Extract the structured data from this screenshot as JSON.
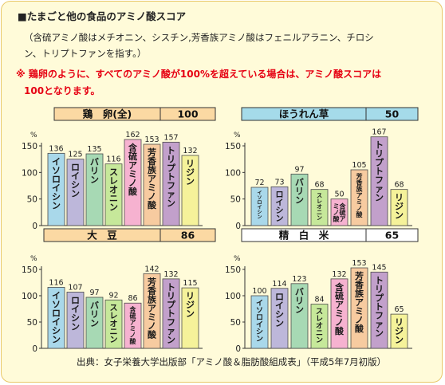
{
  "header": {
    "title": "■たまごと他の食品のアミノ酸スコア",
    "note_line1": "（含硫アミノ酸はメチオニン、シスチン,芳香族アミノ酸はフェニルアラニン、チロシ",
    "note_line2": "ン、トリプトファンを指す。）",
    "warning_line1": "※ 鶏卵のように、すべてのアミノ酸が100%を超えている場合は、アミノ酸スコアは",
    "warning_line2": "100となります。"
  },
  "source": "出典：女子栄養大学出版部「アミノ酸＆脂肪酸組成表」（平成5年7月初版）",
  "chart_data": [
    {
      "type": "bar",
      "title": "鶏　卵(全)",
      "score": "100",
      "ylabel": "%",
      "ylim": [
        0,
        150
      ],
      "yticks": [
        "0",
        "50",
        "100",
        "150"
      ],
      "categories": [
        "イソロイシン",
        "ロイシン",
        "バリン",
        "スレオニン",
        "含硫アミノ酸",
        "芳香族アミノ酸",
        "トリプトファン",
        "リジン"
      ],
      "values": [
        136,
        125,
        135,
        116,
        162,
        153,
        157,
        132
      ],
      "colors": [
        "#a9d8ea",
        "#bdb7da",
        "#a7d9b4",
        "#c6e89a",
        "#f6b2d0",
        "#f7cba0",
        "#c2a0cb",
        "#f5f29a"
      ]
    },
    {
      "type": "bar",
      "title": "ほうれん草",
      "score": "50",
      "ylabel": "%",
      "ylim": [
        0,
        150
      ],
      "yticks": [
        "0",
        "50",
        "100",
        "150"
      ],
      "categories": [
        "イソロイシン",
        "ロイシン",
        "バリン",
        "スレオニン",
        "含硫アミノ酸",
        "芳香族アミノ酸",
        "トリプトファン",
        "リジン"
      ],
      "values": [
        72,
        73,
        97,
        68,
        50,
        105,
        167,
        68
      ],
      "colors": [
        "#a9d8ea",
        "#bdb7da",
        "#a7d9b4",
        "#c6e89a",
        "#f6b2d0",
        "#f7cba0",
        "#c2a0cb",
        "#f5f29a"
      ]
    },
    {
      "type": "bar",
      "title": "大　豆",
      "score": "86",
      "ylabel": "%",
      "ylim": [
        0,
        150
      ],
      "yticks": [
        "0",
        "50",
        "100",
        "150"
      ],
      "categories": [
        "イソロイシン",
        "ロイシン",
        "バリン",
        "スレオニン",
        "含硫アミノ酸",
        "芳香族アミノ酸",
        "トリプトファン",
        "リジン"
      ],
      "values": [
        116,
        107,
        97,
        92,
        86,
        142,
        132,
        115
      ],
      "colors": [
        "#a9d8ea",
        "#bdb7da",
        "#a7d9b4",
        "#c6e89a",
        "#f6b2d0",
        "#f7cba0",
        "#c2a0cb",
        "#f5f29a"
      ]
    },
    {
      "type": "bar",
      "title": "精　白　米",
      "score": "65",
      "ylabel": "%",
      "ylim": [
        0,
        150
      ],
      "yticks": [
        "0",
        "50",
        "100",
        "150"
      ],
      "categories": [
        "イソロイシン",
        "ロイシン",
        "バリン",
        "スレオニン",
        "含硫アミノ酸",
        "芳香族アミノ酸",
        "トリプトファン",
        "リジン"
      ],
      "values": [
        100,
        114,
        123,
        84,
        132,
        153,
        145,
        65
      ],
      "colors": [
        "#a9d8ea",
        "#bdb7da",
        "#a7d9b4",
        "#c6e89a",
        "#f6b2d0",
        "#f7cba0",
        "#c2a0cb",
        "#f5f29a"
      ]
    }
  ]
}
